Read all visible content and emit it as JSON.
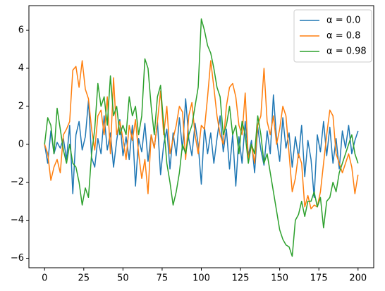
{
  "chart_data": {
    "type": "line",
    "x": [
      0,
      2,
      4,
      6,
      8,
      10,
      12,
      14,
      16,
      18,
      20,
      22,
      24,
      26,
      28,
      30,
      32,
      34,
      36,
      38,
      40,
      42,
      44,
      46,
      48,
      50,
      52,
      54,
      56,
      58,
      60,
      62,
      64,
      66,
      68,
      70,
      72,
      74,
      76,
      78,
      80,
      82,
      84,
      86,
      88,
      90,
      92,
      94,
      96,
      98,
      100,
      102,
      104,
      106,
      108,
      110,
      112,
      114,
      116,
      118,
      120,
      122,
      124,
      126,
      128,
      130,
      132,
      134,
      136,
      138,
      140,
      142,
      144,
      146,
      148,
      150,
      152,
      154,
      156,
      158,
      160,
      162,
      164,
      166,
      168,
      170,
      172,
      174,
      176,
      178,
      180,
      182,
      184,
      186,
      188,
      190,
      192,
      194,
      196,
      198,
      200
    ],
    "series": [
      {
        "name": "α = 0.0",
        "color": "#1f77b4",
        "values": [
          0.0,
          -1.0,
          0.7,
          -0.5,
          0.1,
          -0.2,
          0.3,
          -0.8,
          1.0,
          -2.6,
          0.5,
          1.2,
          -0.3,
          0.4,
          2.3,
          -0.7,
          -1.2,
          0.3,
          -0.5,
          1.5,
          -0.3,
          0.6,
          -1.2,
          0.2,
          1.3,
          -0.6,
          0.4,
          -0.8,
          1.0,
          -2.2,
          0.3,
          -0.4,
          1.1,
          -0.9,
          0.5,
          -0.2,
          1.2,
          -1.6,
          0.0,
          0.8,
          -1.3,
          0.6,
          -0.6,
          1.4,
          -0.3,
          2.4,
          0.3,
          -0.6,
          1.1,
          0.0,
          -2.1,
          0.9,
          -0.5,
          0.6,
          -1.0,
          0.3,
          1.5,
          -0.4,
          0.8,
          -1.3,
          0.5,
          -2.2,
          0.4,
          -1.0,
          1.2,
          -0.6,
          0.2,
          -1.5,
          0.9,
          -0.3,
          -1.1,
          0.7,
          -0.5,
          2.6,
          0.3,
          -0.9,
          1.4,
          -0.2,
          0.6,
          -1.2,
          0.4,
          -0.7,
          1.0,
          -1.7,
          0.2,
          -0.8,
          -2.8,
          0.5,
          -0.4,
          1.2,
          -0.6,
          0.9,
          -1.0,
          0.3,
          -1.3,
          0.7,
          -0.2,
          1.0,
          -0.5,
          0.2,
          0.7
        ]
      },
      {
        "name": "α = 0.8",
        "color": "#ff7f0e",
        "values": [
          0.0,
          -0.5,
          -1.9,
          -1.2,
          -0.8,
          -1.5,
          0.5,
          0.8,
          1.2,
          3.9,
          4.1,
          3.0,
          4.4,
          2.9,
          2.4,
          0.8,
          -0.3,
          1.5,
          1.8,
          0.5,
          2.5,
          -0.5,
          3.5,
          0.5,
          1.2,
          0.3,
          -0.8,
          1.0,
          0.2,
          1.3,
          -0.5,
          -1.8,
          -0.8,
          -2.6,
          0.5,
          -0.2,
          1.2,
          2.8,
          0.5,
          2.0,
          -0.5,
          0.3,
          1.0,
          2.0,
          1.7,
          -0.8,
          1.5,
          2.2,
          0.5,
          -0.5,
          1.0,
          0.8,
          2.5,
          4.4,
          3.0,
          1.5,
          0.5,
          0.0,
          2.0,
          3.0,
          3.2,
          2.5,
          1.0,
          0.5,
          2.7,
          -0.8,
          0.0,
          -1.0,
          1.0,
          1.5,
          4.0,
          1.2,
          0.5,
          1.5,
          0.0,
          0.8,
          2.0,
          1.5,
          -0.5,
          -2.5,
          -1.8,
          -0.5,
          -1.0,
          -3.3,
          -2.7,
          -3.4,
          -3.2,
          -3.3,
          -2.5,
          -1.0,
          0.5,
          1.8,
          1.5,
          -0.5,
          -1.0,
          -1.5,
          -1.0,
          -0.5,
          -1.2,
          -2.6,
          -1.6
        ]
      },
      {
        "name": "α = 0.98",
        "color": "#2ca02c",
        "values": [
          0.0,
          1.4,
          1.0,
          -0.5,
          1.9,
          0.8,
          -0.3,
          -1.0,
          0.0,
          -1.0,
          -1.2,
          -2.0,
          -3.2,
          -2.3,
          -2.8,
          -0.5,
          0.8,
          3.2,
          2.0,
          2.5,
          1.0,
          3.6,
          1.5,
          2.0,
          0.5,
          1.0,
          0.5,
          2.5,
          1.5,
          2.0,
          0.5,
          1.5,
          4.5,
          4.0,
          2.0,
          0.5,
          2.5,
          3.1,
          1.0,
          -1.0,
          -2.0,
          -3.2,
          -2.5,
          -1.5,
          0.0,
          -0.5,
          0.5,
          1.0,
          2.0,
          3.0,
          6.6,
          6.0,
          5.2,
          4.8,
          4.0,
          3.0,
          2.5,
          0.5,
          1.0,
          2.0,
          0.5,
          1.0,
          -0.5,
          1.2,
          0.5,
          -1.0,
          0.0,
          -0.5,
          1.5,
          0.5,
          -1.0,
          -0.5,
          -1.5,
          -2.5,
          -3.5,
          -4.5,
          -5.0,
          -5.3,
          -5.4,
          -5.9,
          -4.0,
          -3.7,
          -3.0,
          -3.8,
          -3.0,
          -3.0,
          -2.5,
          -3.3,
          -2.8,
          -4.4,
          -3.0,
          -2.8,
          -2.0,
          -2.5,
          -1.5,
          -1.0,
          -0.5,
          0.0,
          0.5,
          -0.5,
          -1.0
        ]
      }
    ],
    "xlim": [
      -10,
      210
    ],
    "ylim": [
      -6.5,
      7.3
    ],
    "xticks": [
      0,
      25,
      50,
      75,
      100,
      125,
      150,
      175,
      200
    ],
    "yticks": [
      {
        "value": -6,
        "label": "−6"
      },
      {
        "value": -4,
        "label": "−4"
      },
      {
        "value": -2,
        "label": "−2"
      },
      0,
      2,
      4,
      6
    ],
    "legend": "upper right"
  }
}
